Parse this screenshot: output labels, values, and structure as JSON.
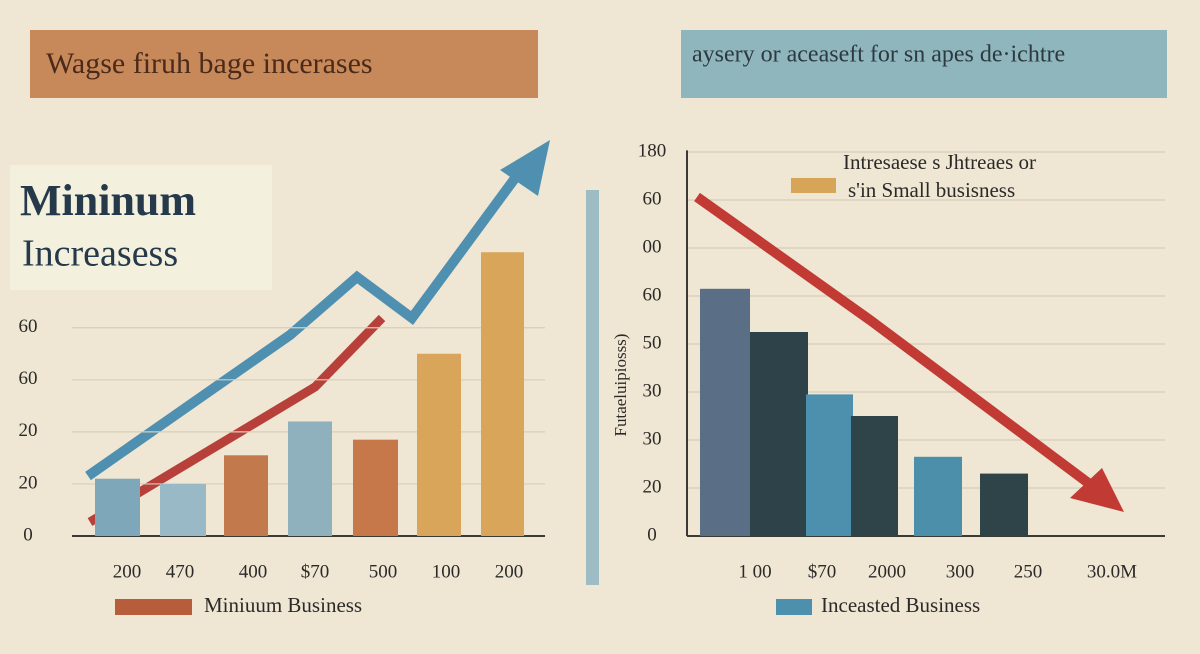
{
  "chart_data": [
    {
      "type": "bar",
      "title": "Wagse firuh bage incerases",
      "annotation": [
        "Mininum",
        "Increasess"
      ],
      "categories": [
        "200",
        "470",
        "400",
        "$70",
        "500",
        "100",
        "200"
      ],
      "series": [
        {
          "name": "Miniuum Business",
          "color": "#b85d3b",
          "values": [
            1.1,
            1.0,
            1.55,
            2.2,
            1.85,
            3.5,
            5.45
          ],
          "bar_colors": [
            "#7fa7ba",
            "#9ab9c6",
            "#c27a4c",
            "#8fb0bd",
            "#c6784b",
            "#d9a55a",
            "#d9a55a"
          ]
        }
      ],
      "ylim": [
        0,
        5.8
      ],
      "yticks": [
        0,
        {
          "value": 1,
          "label": "20"
        },
        {
          "value": 2,
          "label": "20"
        },
        {
          "value": 3,
          "label": "60"
        },
        {
          "value": 4,
          "label": "60"
        }
      ],
      "grid": true
    },
    {
      "type": "bar",
      "title": "aysery or aceaseft for sn apes de·ichtre",
      "y_label": "Futaeluipiosss)",
      "legend_note": {
        "lines": [
          "Intresaese s Jhtreaes or",
          "s'in Small busisness"
        ],
        "color": "#d6a557"
      },
      "categories": [
        "1 00",
        "$70",
        "2000",
        "300",
        "250",
        "30.0M"
      ],
      "series": [
        {
          "name": "Inceasted Business",
          "color": "#4d90ad",
          "values": [
            5.15,
            4.25,
            2.95,
            2.5,
            1.65,
            1.3
          ],
          "bar_colors": [
            "#5a6f85",
            "#2e4249",
            "#4d90ad",
            "#2f4448",
            "#4b8fab",
            "#2f4448"
          ]
        }
      ],
      "ylim": [
        0,
        8.2
      ],
      "yticks": [
        0,
        {
          "value": 1,
          "label": "20"
        },
        {
          "value": 2,
          "label": "30"
        },
        {
          "value": 3,
          "label": "30"
        },
        {
          "value": 4,
          "label": "50"
        },
        {
          "value": 5,
          "label": "60"
        },
        {
          "value": 6,
          "label": "00"
        },
        {
          "value": 7,
          "label": "60"
        },
        {
          "value": 8,
          "label": "180"
        }
      ],
      "grid": true
    }
  ]
}
